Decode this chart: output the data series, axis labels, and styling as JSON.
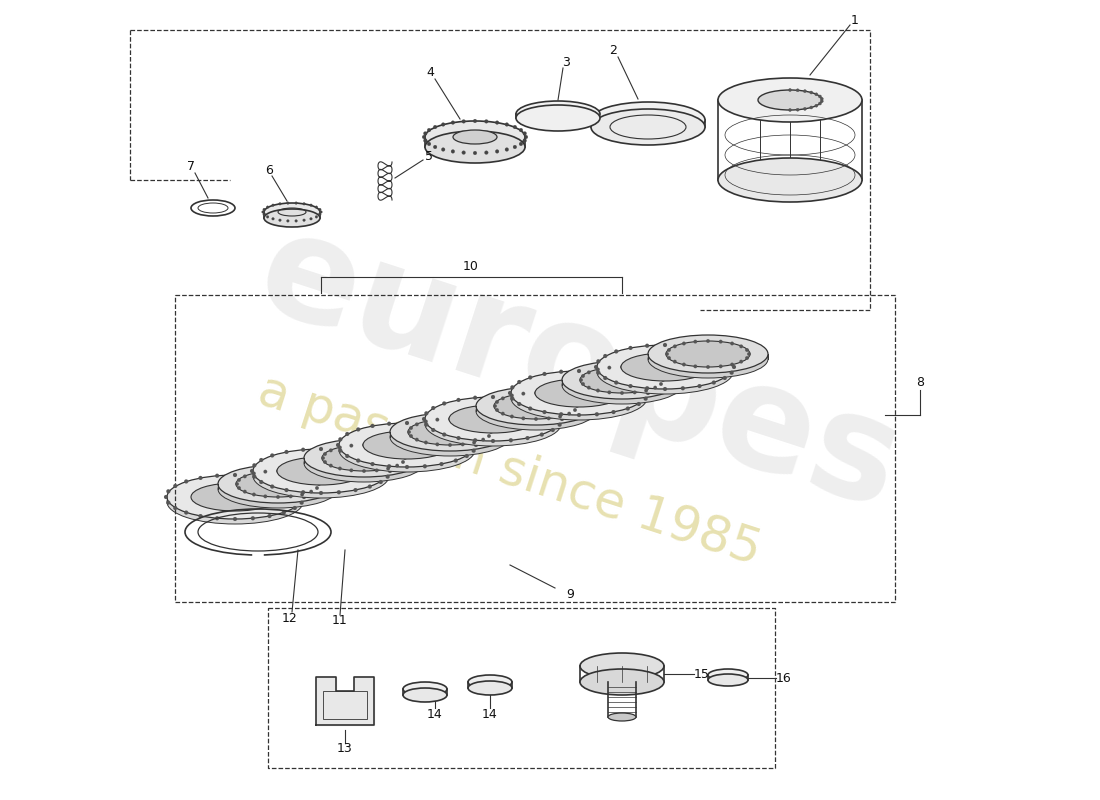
{
  "background_color": "#ffffff",
  "line_color": "#333333",
  "watermark_color": "#d0d0d0",
  "year_color": "#d4c870",
  "parts": [
    1,
    2,
    3,
    4,
    5,
    6,
    7,
    8,
    9,
    10,
    11,
    12,
    13,
    14,
    15,
    16
  ]
}
